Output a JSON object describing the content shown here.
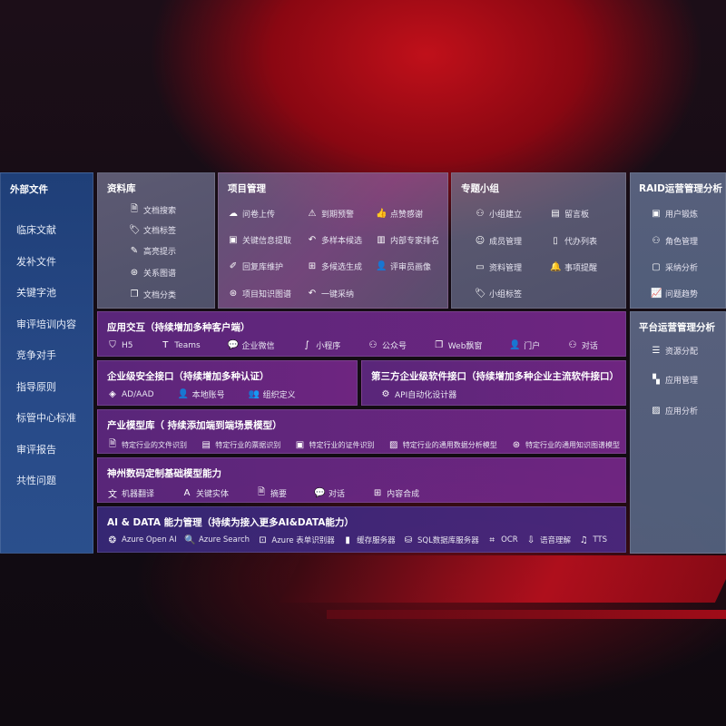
{
  "external": {
    "title": "外部文件",
    "items": [
      "临床文献",
      "发补文件",
      "关键字池",
      "审评培训内容",
      "竞争对手",
      "指导原则",
      "标管中心标准",
      "审评报告",
      "共性问题"
    ]
  },
  "library": {
    "title": "资料库",
    "items": [
      {
        "icon": "doc-search-icon",
        "label": "文档搜索"
      },
      {
        "icon": "tag-icon",
        "label": "文档标签"
      },
      {
        "icon": "pen-icon",
        "label": "高亮提示"
      },
      {
        "icon": "graph-icon",
        "label": "关系图谱"
      },
      {
        "icon": "doc-copy-icon",
        "label": "文档分类"
      }
    ]
  },
  "project": {
    "title": "项目管理",
    "items": [
      {
        "icon": "cloud-upload-icon",
        "label": "问卷上传"
      },
      {
        "icon": "alarm-icon",
        "label": "到期预警"
      },
      {
        "icon": "thumbs-up-icon",
        "label": "点赞感谢"
      },
      {
        "icon": "window-icon",
        "label": "关键信息提取"
      },
      {
        "icon": "reply-icon",
        "label": "多样本候选"
      },
      {
        "icon": "ranking-icon",
        "label": "内部专家排名"
      },
      {
        "icon": "edit-icon",
        "label": "回复库维护"
      },
      {
        "icon": "puzzle-icon",
        "label": "多候选生成"
      },
      {
        "icon": "user-icon",
        "label": "评审员画像"
      },
      {
        "icon": "graph-icon",
        "label": "项目知识图谱"
      },
      {
        "icon": "reply-icon",
        "label": "一键采纳"
      }
    ]
  },
  "group": {
    "title": "专题小组",
    "items": [
      {
        "icon": "group-icon",
        "label": "小组建立"
      },
      {
        "icon": "bbs-icon",
        "label": "留言板"
      },
      {
        "icon": "user-add-icon",
        "label": "成员管理"
      },
      {
        "icon": "clipboard-icon",
        "label": "代办列表"
      },
      {
        "icon": "folder-icon",
        "label": "资料管理"
      },
      {
        "icon": "bell-icon",
        "label": "事项提醒"
      },
      {
        "icon": "tag-icon",
        "label": "小组标签"
      }
    ]
  },
  "raid": {
    "title": "RAID运营管理分析",
    "items": [
      {
        "icon": "id-card-icon",
        "label": "用户锻炼"
      },
      {
        "icon": "users-icon",
        "label": "角色管理"
      },
      {
        "icon": "qa-icon",
        "label": "采纳分析"
      },
      {
        "icon": "trend-icon",
        "label": "问题趋势"
      }
    ]
  },
  "platform": {
    "title": "平台运营管理分析",
    "items": [
      {
        "icon": "list-icon",
        "label": "资源分配"
      },
      {
        "icon": "apps-icon",
        "label": "应用管理"
      },
      {
        "icon": "chart-icon",
        "label": "应用分析"
      }
    ]
  },
  "interaction": {
    "title": "应用交互（持续增加多种客户端）",
    "items": [
      {
        "icon": "html5-icon",
        "label": "H5"
      },
      {
        "icon": "teams-icon",
        "label": "Teams"
      },
      {
        "icon": "wechat-icon",
        "label": "企业微信"
      },
      {
        "icon": "miniprogram-icon",
        "label": "小程序"
      },
      {
        "icon": "users-icon",
        "label": "公众号"
      },
      {
        "icon": "window-icon",
        "label": "Web飘窗"
      },
      {
        "icon": "portal-icon",
        "label": "门户"
      },
      {
        "icon": "chat-users-icon",
        "label": "对话"
      }
    ]
  },
  "security": {
    "title": "企业级安全接口（持续增加多种认证）",
    "items": [
      {
        "icon": "diamond-icon",
        "label": "AD/AAD"
      },
      {
        "icon": "user-lock-icon",
        "label": "本地账号"
      },
      {
        "icon": "org-icon",
        "label": "组织定义"
      }
    ]
  },
  "thirdparty": {
    "title": "第三方企业级软件接口（持续增加多种企业主流软件接口）",
    "items": [
      {
        "icon": "gear-icon",
        "label": "API自动化设计器"
      }
    ]
  },
  "industry": {
    "title": "产业模型库（ 持续添加端到端场景模型）",
    "items": [
      {
        "icon": "doc-icon",
        "label": "特定行业的文件识别"
      },
      {
        "icon": "receipt-icon",
        "label": "特定行业的票据识别"
      },
      {
        "icon": "id-card-icon",
        "label": "特定行业的证件识别"
      },
      {
        "icon": "chart-icon",
        "label": "特定行业的通用数据分析模型"
      },
      {
        "icon": "graph-icon",
        "label": "特定行业的通用知识图谱模型"
      }
    ]
  },
  "basemodel": {
    "title": "神州数码定制基础模型能力",
    "items": [
      {
        "icon": "translate-icon",
        "label": "机器翻译"
      },
      {
        "icon": "entity-icon",
        "label": "关键实体"
      },
      {
        "icon": "doc-icon",
        "label": "摘要"
      },
      {
        "icon": "chat-icon",
        "label": "对话"
      },
      {
        "icon": "puzzle-icon",
        "label": "内容合成"
      }
    ]
  },
  "aidata": {
    "title": "AI & DATA 能力管理（持续为接入更多AI&DATA能力）",
    "items": [
      {
        "icon": "openai-icon",
        "label": "Azure Open AI"
      },
      {
        "icon": "search-doc-icon",
        "label": "Azure Search"
      },
      {
        "icon": "form-icon",
        "label": "Azure 表单识别器"
      },
      {
        "icon": "cache-icon",
        "label": "缓存服务器"
      },
      {
        "icon": "database-icon",
        "label": "SQL数据库服务器"
      },
      {
        "icon": "ocr-icon",
        "label": "OCR"
      },
      {
        "icon": "mic-icon",
        "label": "语音理解"
      },
      {
        "icon": "tts-icon",
        "label": "TTS"
      }
    ]
  }
}
